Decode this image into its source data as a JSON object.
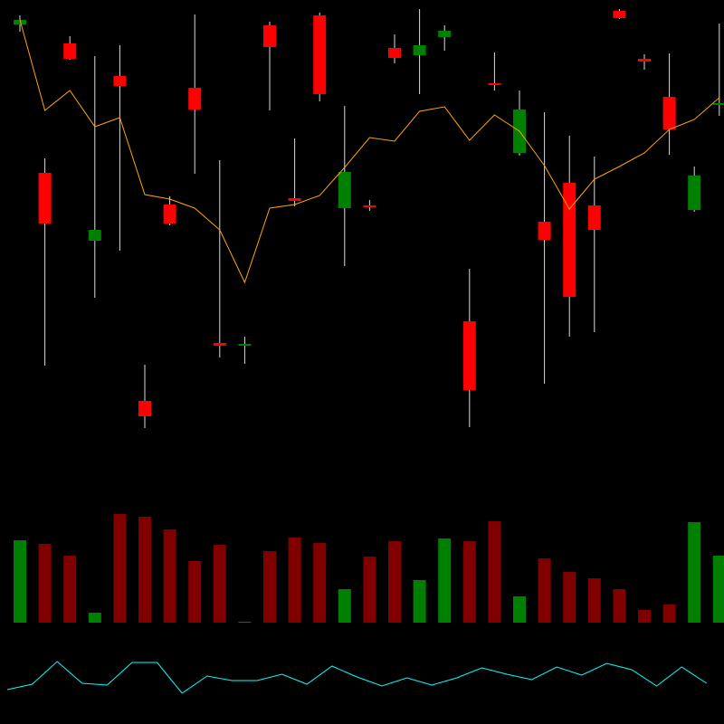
{
  "chart_data": [
    {
      "type": "candlestick",
      "open": [
        473,
        309,
        452,
        234,
        416,
        57,
        274,
        403,
        121,
        119,
        472,
        281,
        483,
        270,
        273,
        447,
        439,
        459,
        145,
        408,
        331,
        255,
        298,
        273,
        488,
        435,
        393,
        268,
        384
      ],
      "high": [
        483,
        325,
        460,
        438,
        450,
        97,
        283,
        484,
        323,
        128,
        476,
        347,
        486,
        383,
        279,
        462,
        490,
        472,
        203,
        442,
        400,
        376,
        350,
        327,
        490,
        440,
        441,
        316,
        474
      ],
      "low": [
        465,
        96,
        434,
        171,
        223,
        27,
        251,
        308,
        105,
        98,
        378,
        272,
        388,
        206,
        267,
        430,
        396,
        444,
        28,
        400,
        328,
        76,
        128,
        133,
        479,
        423,
        329,
        266,
        372
      ],
      "close": [
        478,
        253,
        435,
        246,
        405,
        40,
        253,
        379,
        118,
        120,
        448,
        278,
        396,
        310,
        271,
        436,
        450,
        466,
        69,
        406,
        379,
        235,
        172,
        246,
        480,
        432,
        357,
        306,
        386
      ],
      "up_color": "#008000",
      "down_color": "#ff0000",
      "wick_color": "#dddddd",
      "line_values": [
        478,
        378,
        400,
        360,
        370,
        285,
        280,
        270,
        246,
        188,
        270,
        274,
        284,
        315,
        348,
        344,
        377,
        382,
        345,
        373,
        355,
        317,
        269,
        302,
        316,
        331,
        357,
        368,
        392
      ],
      "line_color": "#ffa500",
      "ylim": [
        0,
        500
      ]
    },
    {
      "type": "bar",
      "values": [
        91,
        87,
        74,
        11,
        120,
        117,
        103,
        68,
        86,
        1,
        79,
        94,
        88,
        37,
        73,
        90,
        47,
        93,
        90,
        112,
        29,
        71,
        56,
        49,
        37,
        14,
        20,
        111,
        74
      ],
      "colors": [
        "#008000",
        "#800000",
        "#800000",
        "#008000",
        "#800000",
        "#800000",
        "#800000",
        "#800000",
        "#800000",
        "#008000",
        "#800000",
        "#800000",
        "#800000",
        "#008000",
        "#800000",
        "#800000",
        "#008000",
        "#008000",
        "#800000",
        "#800000",
        "#008000",
        "#800000",
        "#800000",
        "#800000",
        "#800000",
        "#800000",
        "#800000",
        "#008000",
        "#008000"
      ],
      "ylim": [
        0,
        128
      ]
    },
    {
      "type": "line",
      "values": [
        38,
        44,
        69,
        45,
        43,
        68,
        68,
        34,
        53,
        48,
        48,
        55,
        44,
        64,
        52,
        42,
        51,
        43,
        51,
        62,
        55,
        49,
        63,
        54,
        67,
        60,
        42,
        63,
        45
      ],
      "color": "#00ffff",
      "ylim": [
        0,
        100
      ]
    }
  ]
}
